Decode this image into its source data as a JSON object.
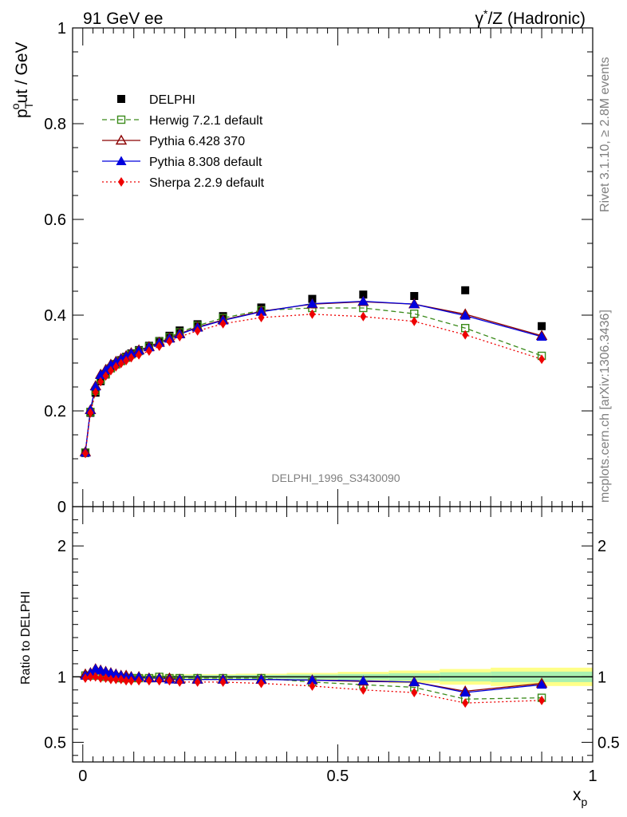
{
  "header": {
    "left": "91 GeV ee",
    "right_prefix": "γ",
    "right_sup": "*",
    "right_suffix": "/Z (Hadronic)"
  },
  "side_labels": {
    "rivet": "Rivet 3.1.10, ≥ 2.8M events",
    "mcplots": "mcplots.cern.ch [arXiv:1306.3436]"
  },
  "watermark": "DELPHI_1996_S3430090",
  "colors": {
    "data": "#000000",
    "herwig": "#3a8a1a",
    "pythia6": "#8b0000",
    "pythia8": "#0000dd",
    "sherpa": "#ee0000",
    "band_inner": "#a8f0b0",
    "band_outer": "#ffff88"
  },
  "chart_data": [
    {
      "type": "scatter",
      "ylabel_main": "p",
      "ylabel_sub": "T",
      "ylabel_sup": "o",
      "ylabel_tail": "ut / GeV",
      "xlim": [
        -0.02,
        1.0
      ],
      "ylim": [
        0,
        1.0
      ],
      "yticks": [
        "0",
        "0.2",
        "0.4",
        "0.6",
        "0.8",
        "1"
      ],
      "x": [
        0.005,
        0.015,
        0.025,
        0.035,
        0.045,
        0.055,
        0.065,
        0.075,
        0.085,
        0.095,
        0.11,
        0.13,
        0.15,
        0.17,
        0.19,
        0.225,
        0.275,
        0.35,
        0.45,
        0.55,
        0.65,
        0.75,
        0.9
      ],
      "series": [
        {
          "name": "DELPHI",
          "key": "data",
          "marker": "square-filled",
          "values": [
            0.112,
            0.196,
            0.238,
            0.262,
            0.276,
            0.289,
            0.298,
            0.306,
            0.313,
            0.32,
            0.327,
            0.336,
            0.346,
            0.357,
            0.368,
            0.381,
            0.398,
            0.416,
            0.434,
            0.443,
            0.44,
            0.452,
            0.377
          ]
        },
        {
          "name": "Herwig 7.2.1 default",
          "key": "herwig",
          "marker": "square-open",
          "dash": "dashed",
          "values": [
            0.113,
            0.198,
            0.242,
            0.265,
            0.277,
            0.289,
            0.297,
            0.304,
            0.311,
            0.318,
            0.325,
            0.334,
            0.345,
            0.354,
            0.364,
            0.378,
            0.394,
            0.41,
            0.415,
            0.415,
            0.403,
            0.373,
            0.315
          ]
        },
        {
          "name": "Pythia 6.428 370",
          "key": "pythia6",
          "marker": "triangle-open",
          "dash": "solid",
          "values": [
            0.114,
            0.202,
            0.252,
            0.276,
            0.286,
            0.297,
            0.303,
            0.309,
            0.315,
            0.321,
            0.327,
            0.334,
            0.343,
            0.352,
            0.361,
            0.375,
            0.39,
            0.408,
            0.423,
            0.428,
            0.423,
            0.402,
            0.357
          ]
        },
        {
          "name": "Pythia 8.308 default",
          "key": "pythia8",
          "marker": "triangle-filled",
          "dash": "solid",
          "values": [
            0.113,
            0.202,
            0.251,
            0.275,
            0.285,
            0.296,
            0.302,
            0.308,
            0.314,
            0.32,
            0.326,
            0.333,
            0.342,
            0.351,
            0.36,
            0.374,
            0.389,
            0.407,
            0.424,
            0.429,
            0.423,
            0.399,
            0.355
          ]
        },
        {
          "name": "Sherpa 2.2.9 default",
          "key": "sherpa",
          "marker": "diamond-filled",
          "dash": "dotted",
          "values": [
            0.111,
            0.196,
            0.239,
            0.261,
            0.273,
            0.284,
            0.292,
            0.299,
            0.305,
            0.311,
            0.317,
            0.325,
            0.335,
            0.345,
            0.355,
            0.367,
            0.382,
            0.395,
            0.402,
            0.397,
            0.387,
            0.359,
            0.308
          ]
        }
      ]
    },
    {
      "type": "scatter",
      "ylabel": "Ratio to DELPHI",
      "xlabel_main": "x",
      "xlabel_sub": "p",
      "xlim": [
        -0.02,
        1.0
      ],
      "ylim": [
        0.35,
        2.3
      ],
      "yticks": [
        "0.5",
        "1",
        "2"
      ],
      "xticks": [
        "0",
        "0.5",
        "1"
      ],
      "uncertainty_band": {
        "bins": [
          [
            0.0,
            0.1
          ],
          [
            0.1,
            0.2
          ],
          [
            0.2,
            0.3
          ],
          [
            0.3,
            0.4
          ],
          [
            0.4,
            0.5
          ],
          [
            0.5,
            0.6
          ],
          [
            0.6,
            0.7
          ],
          [
            0.7,
            0.8
          ],
          [
            0.8,
            1.0
          ]
        ],
        "inner": [
          0.012,
          0.012,
          0.013,
          0.015,
          0.018,
          0.022,
          0.028,
          0.035,
          0.04
        ],
        "outer": [
          0.018,
          0.018,
          0.02,
          0.024,
          0.03,
          0.038,
          0.048,
          0.06,
          0.07
        ]
      },
      "x": [
        0.005,
        0.015,
        0.025,
        0.035,
        0.045,
        0.055,
        0.065,
        0.075,
        0.085,
        0.095,
        0.11,
        0.13,
        0.15,
        0.17,
        0.19,
        0.225,
        0.275,
        0.35,
        0.45,
        0.55,
        0.65,
        0.75,
        0.9
      ],
      "series": [
        {
          "name": "Herwig 7.2.1 default",
          "key": "herwig",
          "marker": "square-open",
          "dash": "dashed",
          "values": [
            1.01,
            1.01,
            1.02,
            1.01,
            1.0,
            1.0,
            1.0,
            0.99,
            0.99,
            0.99,
            0.99,
            0.99,
            1.0,
            0.99,
            0.99,
            0.99,
            0.99,
            0.99,
            0.96,
            0.94,
            0.92,
            0.83,
            0.84
          ]
        },
        {
          "name": "Pythia 6.428 370",
          "key": "pythia6",
          "marker": "triangle-open",
          "dash": "solid",
          "values": [
            1.02,
            1.03,
            1.06,
            1.05,
            1.04,
            1.03,
            1.02,
            1.01,
            1.01,
            1.0,
            1.0,
            0.99,
            0.99,
            0.99,
            0.98,
            0.98,
            0.98,
            0.98,
            0.975,
            0.965,
            0.96,
            0.89,
            0.95
          ]
        },
        {
          "name": "Pythia 8.308 default",
          "key": "pythia8",
          "marker": "triangle-filled",
          "dash": "solid",
          "values": [
            1.01,
            1.03,
            1.06,
            1.05,
            1.04,
            1.03,
            1.02,
            1.01,
            1.0,
            1.0,
            1.0,
            0.99,
            0.99,
            0.98,
            0.98,
            0.98,
            0.98,
            0.98,
            0.975,
            0.97,
            0.96,
            0.88,
            0.94
          ]
        },
        {
          "name": "Sherpa 2.2.9 default",
          "key": "sherpa",
          "marker": "diamond-filled",
          "dash": "dotted",
          "values": [
            0.99,
            1.0,
            1.0,
            0.99,
            0.99,
            0.98,
            0.98,
            0.98,
            0.97,
            0.97,
            0.97,
            0.97,
            0.97,
            0.97,
            0.96,
            0.96,
            0.96,
            0.95,
            0.93,
            0.9,
            0.88,
            0.8,
            0.82
          ]
        }
      ]
    }
  ]
}
